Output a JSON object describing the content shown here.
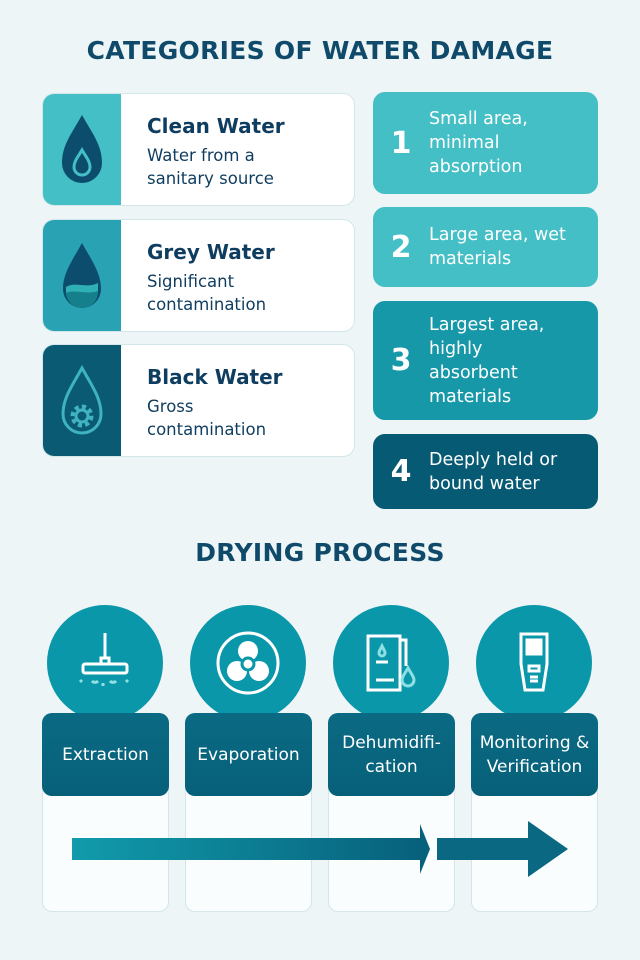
{
  "title": "CATEGORIES OF WATER DAMAGE",
  "categories": [
    {
      "title": "Clean Water",
      "desc": "Water from a sanitary source",
      "icon": "water-drop-icon",
      "color": "#45bfc6"
    },
    {
      "title": "Grey Water",
      "desc": "Significant contamination",
      "icon": "half-filled-drop-icon",
      "color": "#29a3b3"
    },
    {
      "title": "Black Water",
      "desc": "Gross contamination",
      "icon": "drop-gear-icon",
      "color": "#0a5a73"
    }
  ],
  "classes": [
    {
      "num": "1",
      "desc": "Small area, minimal absorption",
      "color": "#45bfc6"
    },
    {
      "num": "2",
      "desc": "Large area, wet materials",
      "color": "#45bfc6"
    },
    {
      "num": "3",
      "desc": "Largest area, highly absorbent materials",
      "color": "#1798a8"
    },
    {
      "num": "4",
      "desc": "Deeply held or bound water",
      "color": "#075a73"
    }
  ],
  "process_title": "DRYING PROCESS",
  "steps": [
    {
      "label": "Extraction",
      "icon": "extractor-wand-icon"
    },
    {
      "label": "Evaporation",
      "icon": "fan-icon"
    },
    {
      "label": "Dehumidifi-cation",
      "icon": "dehumidifier-icon"
    },
    {
      "label": "Monitoring & Verification",
      "icon": "moisture-meter-icon"
    }
  ]
}
